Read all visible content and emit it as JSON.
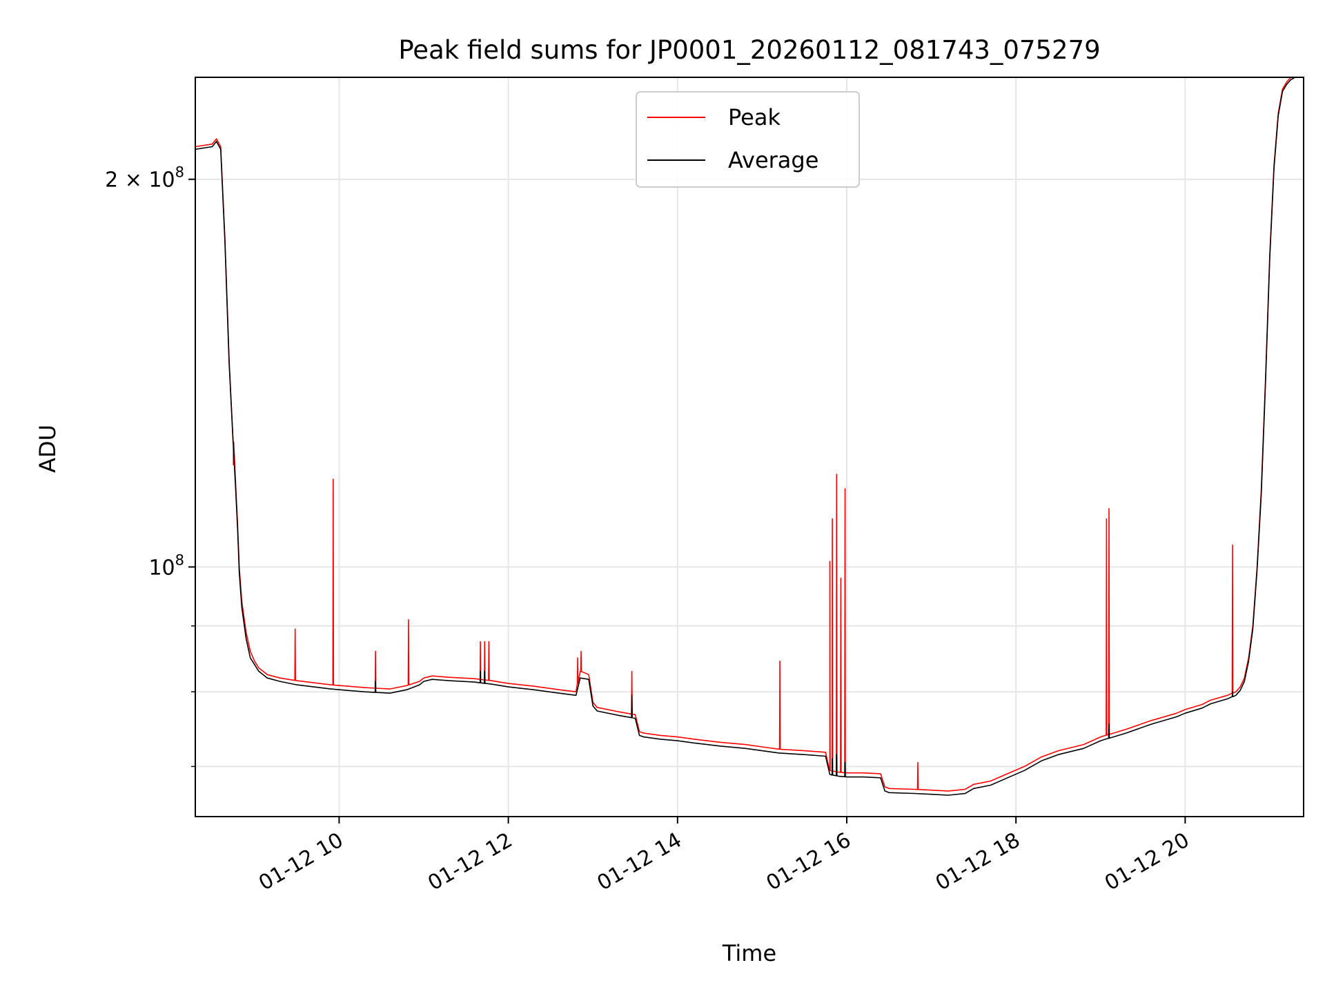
{
  "chart_data": {
    "type": "line",
    "title": "Peak field sums for JP0001_20260112_081743_075279",
    "xlabel": "Time",
    "ylabel": "ADU",
    "yscale": "log",
    "x_unit": "hours since 2026-01-12 00:00",
    "xlim": [
      8.3,
      21.4
    ],
    "ylim": [
      64000000,
      240000000
    ],
    "grid": true,
    "legend_position": "upper center",
    "x_ticks": [
      {
        "value": 10,
        "label": "01-12 10"
      },
      {
        "value": 12,
        "label": "01-12 12"
      },
      {
        "value": 14,
        "label": "01-12 14"
      },
      {
        "value": 16,
        "label": "01-12 16"
      },
      {
        "value": 18,
        "label": "01-12 18"
      },
      {
        "value": 20,
        "label": "01-12 20"
      }
    ],
    "y_major_ticks": [
      {
        "value": 100000000,
        "base": "10",
        "exp": "8",
        "mant": ""
      },
      {
        "value": 200000000,
        "base": "10",
        "exp": "8",
        "mant": "2 × "
      }
    ],
    "y_minor_ticks": [
      70000000,
      80000000,
      90000000
    ],
    "series": [
      {
        "name": "Peak",
        "color": "#ff0000",
        "x": [
          8.3,
          8.5,
          8.55,
          8.6,
          8.65,
          8.7,
          8.75,
          8.78,
          8.8,
          8.82,
          8.85,
          8.9,
          8.95,
          9.0,
          9.05,
          9.1,
          9.15,
          9.3,
          9.5,
          9.7,
          9.9,
          10.1,
          10.3,
          10.6,
          10.8,
          10.95,
          11.0,
          11.1,
          11.3,
          11.6,
          11.8,
          12.0,
          12.3,
          12.6,
          12.8,
          12.85,
          12.95,
          13.0,
          13.05,
          13.3,
          13.5,
          13.55,
          13.6,
          13.8,
          14.0,
          14.2,
          14.5,
          14.8,
          15.0,
          15.2,
          15.5,
          15.75,
          15.8,
          15.9,
          16.0,
          16.2,
          16.4,
          16.45,
          16.5,
          16.8,
          17.0,
          17.2,
          17.4,
          17.5,
          17.7,
          17.9,
          18.1,
          18.3,
          18.5,
          18.8,
          19.0,
          19.3,
          19.6,
          19.9,
          20.0,
          20.2,
          20.3,
          20.5,
          20.6,
          20.65,
          20.7,
          20.75,
          20.8,
          20.85,
          20.9,
          20.95,
          21.0,
          21.05,
          21.1,
          21.15,
          21.2,
          21.25,
          21.3,
          21.35,
          21.4
        ],
        "values": [
          212000000,
          213000000,
          215000000,
          212000000,
          180000000,
          145000000,
          125000000,
          115000000,
          108000000,
          100000000,
          94000000,
          89000000,
          86000000,
          84500000,
          83500000,
          83000000,
          82500000,
          82000000,
          81600000,
          81300000,
          81000000,
          80800000,
          80600000,
          80400000,
          80900000,
          81500000,
          82000000,
          82300000,
          82100000,
          81900000,
          81600000,
          81200000,
          80800000,
          80300000,
          80000000,
          83000000,
          82500000,
          78500000,
          77800000,
          77200000,
          76800000,
          74500000,
          74300000,
          74000000,
          73800000,
          73500000,
          73100000,
          72800000,
          72500000,
          72200000,
          72000000,
          71800000,
          69500000,
          69300000,
          69200000,
          69200000,
          69100000,
          67500000,
          67300000,
          67200000,
          67100000,
          67000000,
          67200000,
          67800000,
          68200000,
          69100000,
          70000000,
          71200000,
          72000000,
          72800000,
          73800000,
          74800000,
          76000000,
          77000000,
          77500000,
          78200000,
          78800000,
          79500000,
          80000000,
          80700000,
          82000000,
          85000000,
          90000000,
          100000000,
          115000000,
          140000000,
          175000000,
          205000000,
          225000000,
          235000000,
          238000000,
          240000000,
          240000000,
          240000000,
          240000000
        ],
        "spikes": [
          [
            8.75,
            120000000
          ],
          [
            9.48,
            89500000
          ],
          [
            9.93,
            117000000
          ],
          [
            10.43,
            86000000
          ],
          [
            10.82,
            91000000
          ],
          [
            11.67,
            87500000
          ],
          [
            11.72,
            87500000
          ],
          [
            11.77,
            87500000
          ],
          [
            12.82,
            85000000
          ],
          [
            12.86,
            86000000
          ],
          [
            13.46,
            83000000
          ],
          [
            15.21,
            84500000
          ],
          [
            15.8,
            101000000
          ],
          [
            15.83,
            109000000
          ],
          [
            15.88,
            118000000
          ],
          [
            15.93,
            98000000
          ],
          [
            15.98,
            115000000
          ],
          [
            16.84,
            70500000
          ],
          [
            19.07,
            109000000
          ],
          [
            19.1,
            111000000
          ],
          [
            20.56,
            104000000
          ]
        ]
      },
      {
        "name": "Average",
        "color": "#000000",
        "x": [
          8.3,
          8.5,
          8.55,
          8.6,
          8.65,
          8.7,
          8.75,
          8.78,
          8.8,
          8.82,
          8.85,
          8.9,
          8.95,
          9.0,
          9.05,
          9.1,
          9.15,
          9.3,
          9.5,
          9.7,
          9.9,
          10.1,
          10.3,
          10.6,
          10.8,
          10.95,
          11.0,
          11.1,
          11.3,
          11.6,
          11.8,
          12.0,
          12.3,
          12.6,
          12.8,
          12.85,
          12.95,
          13.0,
          13.05,
          13.3,
          13.5,
          13.55,
          13.6,
          13.8,
          14.0,
          14.2,
          14.5,
          14.8,
          15.0,
          15.2,
          15.5,
          15.75,
          15.8,
          15.9,
          16.0,
          16.2,
          16.4,
          16.45,
          16.5,
          16.8,
          17.0,
          17.2,
          17.4,
          17.5,
          17.7,
          17.9,
          18.1,
          18.3,
          18.5,
          18.8,
          19.0,
          19.3,
          19.6,
          19.9,
          20.0,
          20.2,
          20.3,
          20.5,
          20.6,
          20.65,
          20.7,
          20.75,
          20.8,
          20.85,
          20.9,
          20.95,
          21.0,
          21.05,
          21.1,
          21.15,
          21.2,
          21.25,
          21.3,
          21.35,
          21.4
        ],
        "values": [
          211000000,
          212000000,
          214000000,
          211000000,
          179000000,
          144000000,
          124000000,
          114000000,
          107000000,
          99000000,
          93000000,
          88000000,
          85000000,
          84000000,
          83000000,
          82500000,
          82000000,
          81500000,
          81000000,
          80700000,
          80400000,
          80200000,
          80000000,
          79800000,
          80300000,
          81000000,
          81500000,
          81800000,
          81600000,
          81400000,
          81100000,
          80700000,
          80300000,
          79800000,
          79500000,
          82000000,
          81800000,
          78000000,
          77300000,
          76700000,
          76300000,
          74000000,
          73800000,
          73500000,
          73300000,
          73000000,
          72600000,
          72300000,
          72000000,
          71700000,
          71500000,
          71300000,
          69000000,
          68800000,
          68700000,
          68700000,
          68600000,
          67000000,
          66800000,
          66700000,
          66600000,
          66500000,
          66700000,
          67300000,
          67700000,
          68600000,
          69500000,
          70700000,
          71500000,
          72300000,
          73300000,
          74300000,
          75500000,
          76500000,
          77000000,
          77700000,
          78300000,
          79000000,
          79500000,
          80200000,
          81500000,
          84500000,
          89500000,
          99500000,
          114000000,
          139000000,
          174000000,
          204000000,
          224000000,
          234000000,
          237000000,
          239000000,
          240000000,
          240000000,
          240000000
        ],
        "spikes": [
          [
            10.43,
            81500000
          ],
          [
            11.67,
            83000000
          ],
          [
            11.72,
            83000000
          ],
          [
            12.86,
            82000000
          ],
          [
            13.46,
            79500000
          ],
          [
            15.83,
            71000000
          ],
          [
            15.88,
            71500000
          ],
          [
            15.98,
            70500000
          ],
          [
            19.1,
            75500000
          ],
          [
            20.56,
            80000000
          ]
        ]
      }
    ]
  }
}
